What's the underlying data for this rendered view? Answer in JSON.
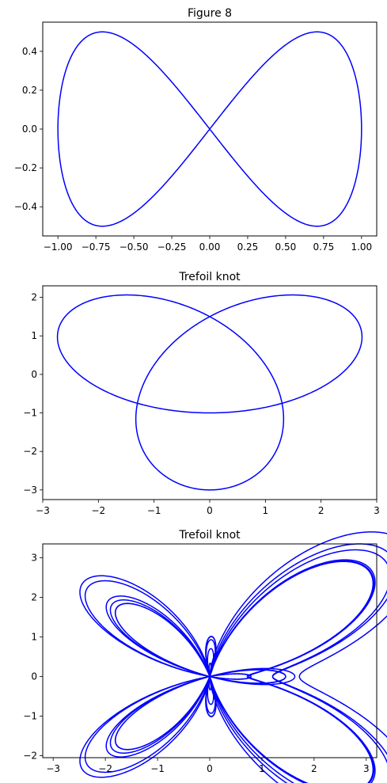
{
  "chart_data": [
    {
      "type": "line",
      "title": "Figure 8",
      "xlabel": "",
      "ylabel": "",
      "xlim": [
        -1.1,
        1.1
      ],
      "ylim": [
        -0.55,
        0.55
      ],
      "xticks": [
        -1.0,
        -0.75,
        -0.5,
        -0.25,
        0.0,
        0.25,
        0.5,
        0.75,
        1.0
      ],
      "xtick_labels": [
        "−1.00",
        "−0.75",
        "−0.50",
        "−0.25",
        "0.00",
        "0.25",
        "0.50",
        "0.75",
        "1.00"
      ],
      "yticks": [
        -0.4,
        -0.2,
        0.0,
        0.2,
        0.4
      ],
      "ytick_labels": [
        "−0.4",
        "−0.2",
        "0.0",
        "0.2",
        "0.4"
      ],
      "grid": false,
      "color": "#0000ff",
      "curve": "x = sin(t), y = sin(t)·cos(t), t ∈ [0, 2π]",
      "series": [
        {
          "x": [
            0.0,
            0.309,
            0.588,
            0.809,
            0.951,
            1.0,
            0.951,
            0.809,
            0.588,
            0.309,
            0.0,
            -0.309,
            -0.588,
            -0.809,
            -0.951,
            -1.0,
            -0.951,
            -0.809,
            -0.588,
            -0.309,
            0.0
          ],
          "y": [
            0.0,
            0.294,
            0.476,
            0.476,
            0.294,
            0.0,
            -0.294,
            -0.476,
            -0.476,
            -0.294,
            0.0,
            0.294,
            0.476,
            0.476,
            0.294,
            0.0,
            -0.294,
            -0.476,
            -0.476,
            -0.294,
            0.0
          ]
        }
      ]
    },
    {
      "type": "line",
      "title": "Trefoil knot",
      "xlabel": "",
      "ylabel": "",
      "xlim": [
        -3,
        3
      ],
      "ylim": [
        -3.25,
        2.3
      ],
      "xticks": [
        -3,
        -2,
        -1,
        0,
        1,
        2,
        3
      ],
      "xtick_labels": [
        "−3",
        "−2",
        "−1",
        "0",
        "1",
        "2",
        "3"
      ],
      "yticks": [
        -3,
        -2,
        -1,
        0,
        1,
        2
      ],
      "ytick_labels": [
        "−3",
        "−2",
        "−1",
        "0",
        "1",
        "2"
      ],
      "grid": false,
      "color": "#0000ff",
      "curve": "x = sin(t) + 2·sin(2t), y = cos(t) − 2·cos(2t), t ∈ [0, 2π]",
      "series": [
        {
          "x": [
            0.0,
            2.212,
            2.487,
            0.588,
            -1.551,
            -2.0,
            -0.951,
            0.809,
            2.128,
            2.204,
            0.0,
            -2.204,
            -2.128,
            -0.809,
            0.951,
            2.0,
            1.551,
            -0.588,
            -2.487,
            -2.212,
            0.0
          ],
          "y": [
            -1.0,
            -0.667,
            0.691,
            1.846,
            1.919,
            1.0,
            -0.023,
            -0.382,
            -0.209,
            -0.03,
            1.0,
            -0.03,
            -0.209,
            -0.382,
            -0.023,
            1.0,
            1.919,
            1.846,
            0.691,
            -0.667,
            -1.0
          ]
        }
      ]
    },
    {
      "type": "line",
      "title": "Trefoil knot",
      "xlabel": "",
      "ylabel": "",
      "xlim": [
        -3.2,
        3.2
      ],
      "ylim": [
        -2.05,
        3.35
      ],
      "xticks": [
        -3,
        -2,
        -1,
        0,
        1,
        2,
        3
      ],
      "xtick_labels": [
        "−3",
        "−2",
        "−1",
        "0",
        "1",
        "2",
        "3"
      ],
      "yticks": [
        -2,
        -1,
        0,
        1,
        2,
        3
      ],
      "ytick_labels": [
        "−2",
        "−1",
        "0",
        "1",
        "2",
        "3"
      ],
      "grid": false,
      "color": "#0000ff",
      "curve": "butterfly curve: r = e^(sin t) − 2·cos(4t) + sin⁵((2t − π)/24), x = r·sin(t), y = r·cos(t)",
      "series": [
        {
          "x": [
            0.0,
            0.196,
            0.611,
            1.24,
            1.909,
            2.465,
            2.714,
            2.361,
            1.404,
            0.377,
            0.0,
            -0.377,
            -1.404,
            -2.361,
            -2.714,
            -2.465,
            -1.909,
            -1.24,
            -0.611,
            -0.196,
            0.0
          ],
          "y": [
            0.718,
            1.245,
            1.94,
            2.512,
            2.793,
            2.719,
            2.101,
            0.964,
            0.128,
            -0.098,
            0.0,
            -0.098,
            0.128,
            0.964,
            2.101,
            2.719,
            2.793,
            2.512,
            1.94,
            1.245,
            0.718
          ]
        }
      ]
    }
  ]
}
